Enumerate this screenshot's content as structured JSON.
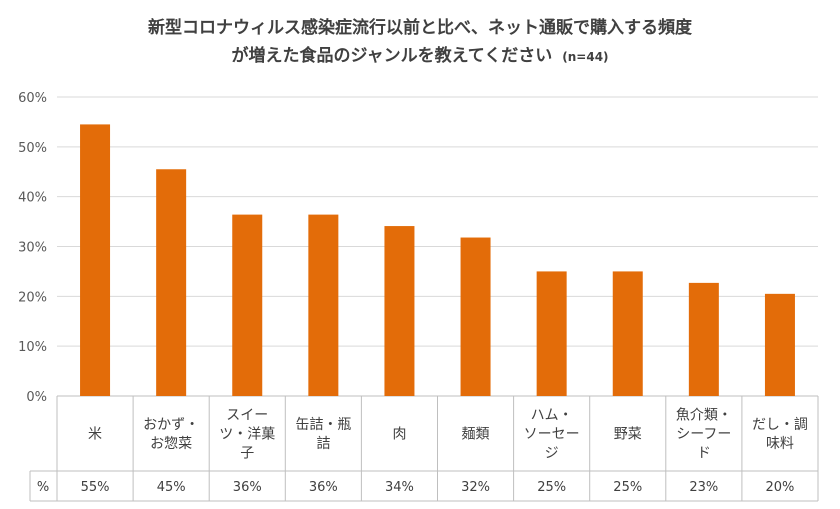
{
  "chart_data": {
    "type": "bar",
    "title_line1": "新型コロナウィルス感染症流行以前と比べ、ネット通販で購入する頻度",
    "title_line2": "が増えた食品のジャンルを教えてください",
    "sample_size": "(n=44)",
    "ylim": [
      0,
      60
    ],
    "yticks": [
      "0%",
      "10%",
      "20%",
      "30%",
      "40%",
      "50%",
      "60%"
    ],
    "grid": true,
    "bar_color": "#E36C09",
    "categories": [
      [
        "米"
      ],
      [
        "おかず・",
        "お惣菜"
      ],
      [
        "スイー",
        "ツ・洋菓",
        "子"
      ],
      [
        "缶詰・瓶",
        "詰"
      ],
      [
        "肉"
      ],
      [
        "麺類"
      ],
      [
        "ハム・",
        "ソーセー",
        "ジ"
      ],
      [
        "野菜"
      ],
      [
        "魚介類・",
        "シーフー",
        "ド"
      ],
      [
        "だし・調",
        "味料"
      ]
    ],
    "values": [
      54.5,
      45.5,
      36.4,
      36.4,
      34.1,
      31.8,
      25.0,
      25.0,
      22.7,
      20.5
    ],
    "table_row_label": "%",
    "value_labels": [
      "55%",
      "45%",
      "36%",
      "36%",
      "34%",
      "32%",
      "25%",
      "25%",
      "23%",
      "20%"
    ]
  }
}
